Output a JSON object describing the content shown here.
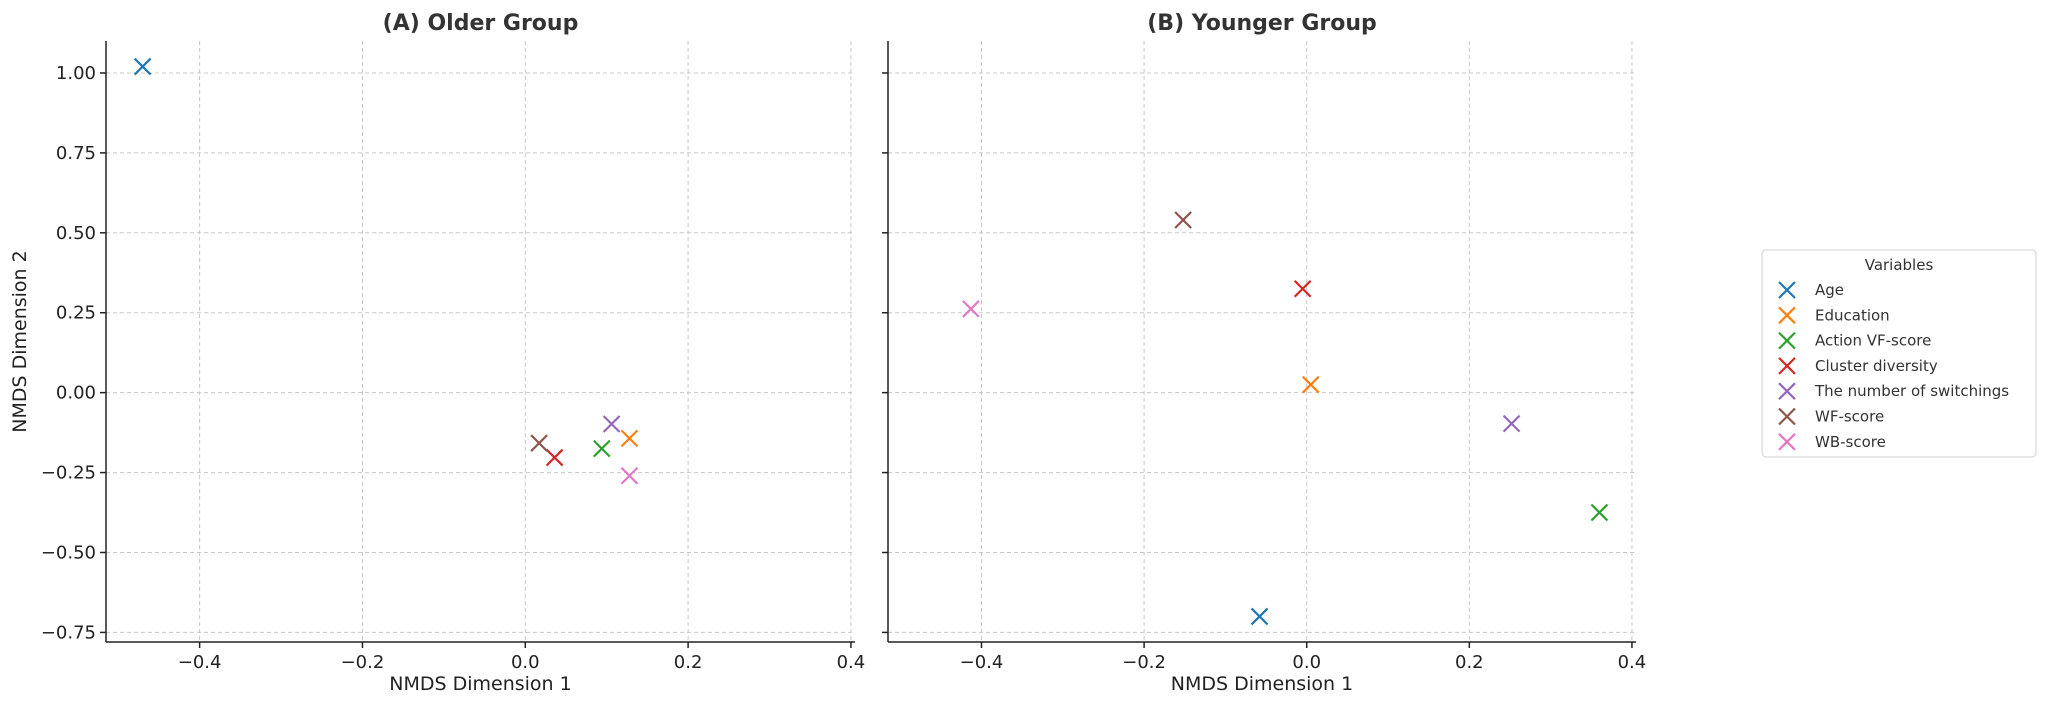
{
  "chart_data": [
    {
      "type": "scatter",
      "title": "(A) Older Group",
      "xlabel": "NMDS Dimension 1",
      "ylabel": "NMDS Dimension 2",
      "xlim": [
        -0.515,
        0.405
      ],
      "ylim": [
        -0.78,
        1.1
      ],
      "xticks": [
        -0.4,
        -0.2,
        0.0,
        0.2,
        0.4
      ],
      "xtick_labels": [
        "−0.4",
        "−0.2",
        "0.0",
        "0.2",
        "0.4"
      ],
      "yticks": [
        1.0,
        0.75,
        0.5,
        0.25,
        0.0,
        -0.25,
        -0.5,
        -0.75
      ],
      "ytick_labels": [
        "1.00",
        "0.75",
        "0.50",
        "0.25",
        "0.00",
        "−0.25",
        "−0.50",
        "−0.75"
      ],
      "grid": true,
      "points": [
        {
          "name": "Age",
          "x": -0.47,
          "y": 1.02
        },
        {
          "name": "Education",
          "x": 0.128,
          "y": -0.143
        },
        {
          "name": "Action VF-score",
          "x": 0.094,
          "y": -0.175
        },
        {
          "name": "Cluster diversity",
          "x": 0.036,
          "y": -0.203
        },
        {
          "name": "The number of switchings",
          "x": 0.106,
          "y": -0.098
        },
        {
          "name": "WF-score",
          "x": 0.017,
          "y": -0.158
        },
        {
          "name": "WB-score",
          "x": 0.128,
          "y": -0.26
        }
      ]
    },
    {
      "type": "scatter",
      "title": "(B) Younger Group",
      "xlabel": "NMDS Dimension 1",
      "ylabel": "",
      "xlim": [
        -0.515,
        0.405
      ],
      "ylim": [
        -0.78,
        1.1
      ],
      "xticks": [
        -0.4,
        -0.2,
        0.0,
        0.2,
        0.4
      ],
      "xtick_labels": [
        "−0.4",
        "−0.2",
        "0.0",
        "0.2",
        "0.4"
      ],
      "yticks": [
        1.0,
        0.75,
        0.5,
        0.25,
        0.0,
        -0.25,
        -0.5,
        -0.75
      ],
      "ytick_labels": [],
      "grid": true,
      "points": [
        {
          "name": "Age",
          "x": -0.058,
          "y": -0.7
        },
        {
          "name": "Education",
          "x": 0.005,
          "y": 0.025
        },
        {
          "name": "Action VF-score",
          "x": 0.36,
          "y": -0.375
        },
        {
          "name": "Cluster diversity",
          "x": -0.005,
          "y": 0.325
        },
        {
          "name": "The number of switchings",
          "x": 0.252,
          "y": -0.097
        },
        {
          "name": "WF-score",
          "x": -0.152,
          "y": 0.54
        },
        {
          "name": "WB-score",
          "x": -0.413,
          "y": 0.262
        }
      ]
    }
  ],
  "legend": {
    "title": "Variables",
    "placement": "right",
    "marker": "x",
    "items": [
      {
        "label": "Age",
        "color": "#1f77b4"
      },
      {
        "label": "Education",
        "color": "#ff7f0e"
      },
      {
        "label": "Action VF-score",
        "color": "#2ca02c"
      },
      {
        "label": "Cluster diversity",
        "color": "#d62728"
      },
      {
        "label": "The number of switchings",
        "color": "#9467bd"
      },
      {
        "label": "WF-score",
        "color": "#8c564b"
      },
      {
        "label": "WB-score",
        "color": "#e377c2"
      }
    ]
  }
}
